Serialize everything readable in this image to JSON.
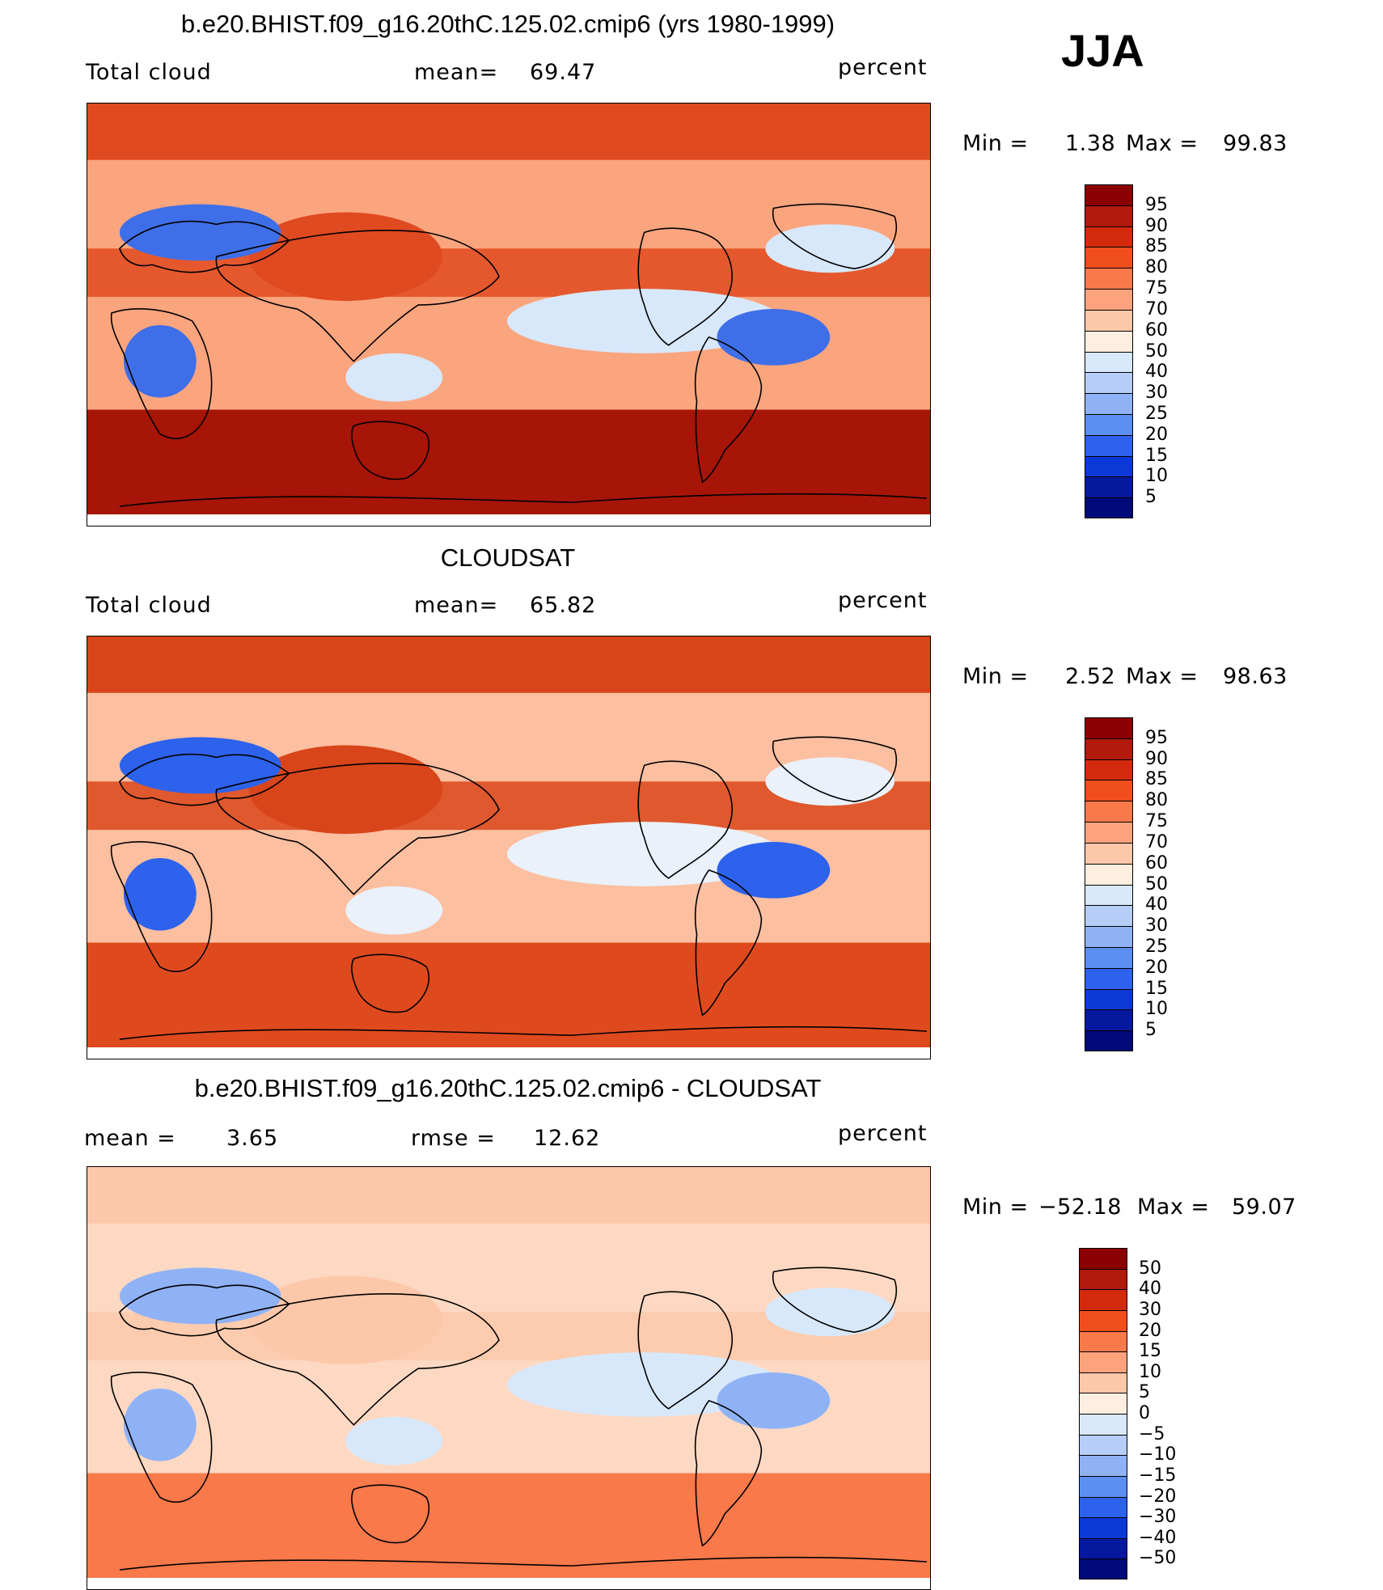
{
  "season": "JJA",
  "units": "percent",
  "panels": [
    {
      "title": "b.e20.BHIST.f09_g16.20thC.125.02.cmip6 (yrs 1980-1999)",
      "left_label": "Total cloud",
      "mid_label": "mean=",
      "mid_value": "69.47",
      "right_label": "percent",
      "min_label": "Min =",
      "min_value": "1.38",
      "max_label": "Max =",
      "max_value": "99.83",
      "levels": [
        "95",
        "90",
        "85",
        "80",
        "75",
        "70",
        "60",
        "50",
        "40",
        "30",
        "25",
        "20",
        "15",
        "10",
        "5"
      ],
      "colors": [
        "#8b0000",
        "#b11a0c",
        "#d32a0e",
        "#f04f1c",
        "#f9794a",
        "#fca37d",
        "#fdc8aa",
        "#fdeedf",
        "#d8e8fb",
        "#b5cdf8",
        "#8fb2f6",
        "#5c8ff2",
        "#2d62ec",
        "#0c38d8",
        "#06199e",
        "#000a7a"
      ],
      "fields": {
        "south_ocean": "#a61508",
        "tropics": "#e04a20",
        "pacific_band": "#f07545",
        "land_low": "#3f6fe8",
        "ocean_mid": "#fba57e",
        "light": "#d8e8fb"
      }
    },
    {
      "title": "CLOUDSAT",
      "left_label": "Total cloud",
      "mid_label": "mean=",
      "mid_value": "65.82",
      "right_label": "percent",
      "min_label": "Min =",
      "min_value": "2.52",
      "max_label": "Max =",
      "max_value": "98.63",
      "levels": [
        "95",
        "90",
        "85",
        "80",
        "75",
        "70",
        "60",
        "50",
        "40",
        "30",
        "25",
        "20",
        "15",
        "10",
        "5"
      ],
      "colors": [
        "#8b0000",
        "#b11a0c",
        "#d32a0e",
        "#f04f1c",
        "#f9794a",
        "#fca37d",
        "#fdc8aa",
        "#fdeedf",
        "#d8e8fb",
        "#b5cdf8",
        "#8fb2f6",
        "#5c8ff2",
        "#2d62ec",
        "#0c38d8",
        "#06199e",
        "#000a7a"
      ],
      "fields": {
        "south_ocean": "#de4a1e",
        "tropics": "#d9451a",
        "pacific_band": "#f48a60",
        "land_low": "#2d62ec",
        "ocean_mid": "#fcbfa0",
        "light": "#eaf1fb"
      }
    },
    {
      "title": "b.e20.BHIST.f09_g16.20thC.125.02.cmip6 - CLOUDSAT",
      "left_label": "mean =",
      "left_value": "3.65",
      "mid_label": "rmse =",
      "mid_value": "12.62",
      "right_label": "percent",
      "min_label": "Min =",
      "min_value": "−52.18",
      "max_label": "Max =",
      "max_value": "59.07",
      "levels": [
        "50",
        "40",
        "30",
        "20",
        "15",
        "10",
        "5",
        "0",
        "−5",
        "−10",
        "−15",
        "−20",
        "−30",
        "−40",
        "−50"
      ],
      "colors": [
        "#8b0000",
        "#b11a0c",
        "#d32a0e",
        "#f04f1c",
        "#f9794a",
        "#fca37d",
        "#fdc8aa",
        "#fdeedf",
        "#d8e8fb",
        "#b5cdf8",
        "#8fb2f6",
        "#5c8ff2",
        "#2d62ec",
        "#0c38d8",
        "#06199e",
        "#000a7a"
      ],
      "fields": {
        "south_ocean": "#f9794a",
        "tropics": "#fdc8aa",
        "pacific_band": "#5c8ff2",
        "land_low": "#8fb2f6",
        "ocean_mid": "#fdd9c3",
        "light": "#d8e8fb"
      }
    }
  ]
}
